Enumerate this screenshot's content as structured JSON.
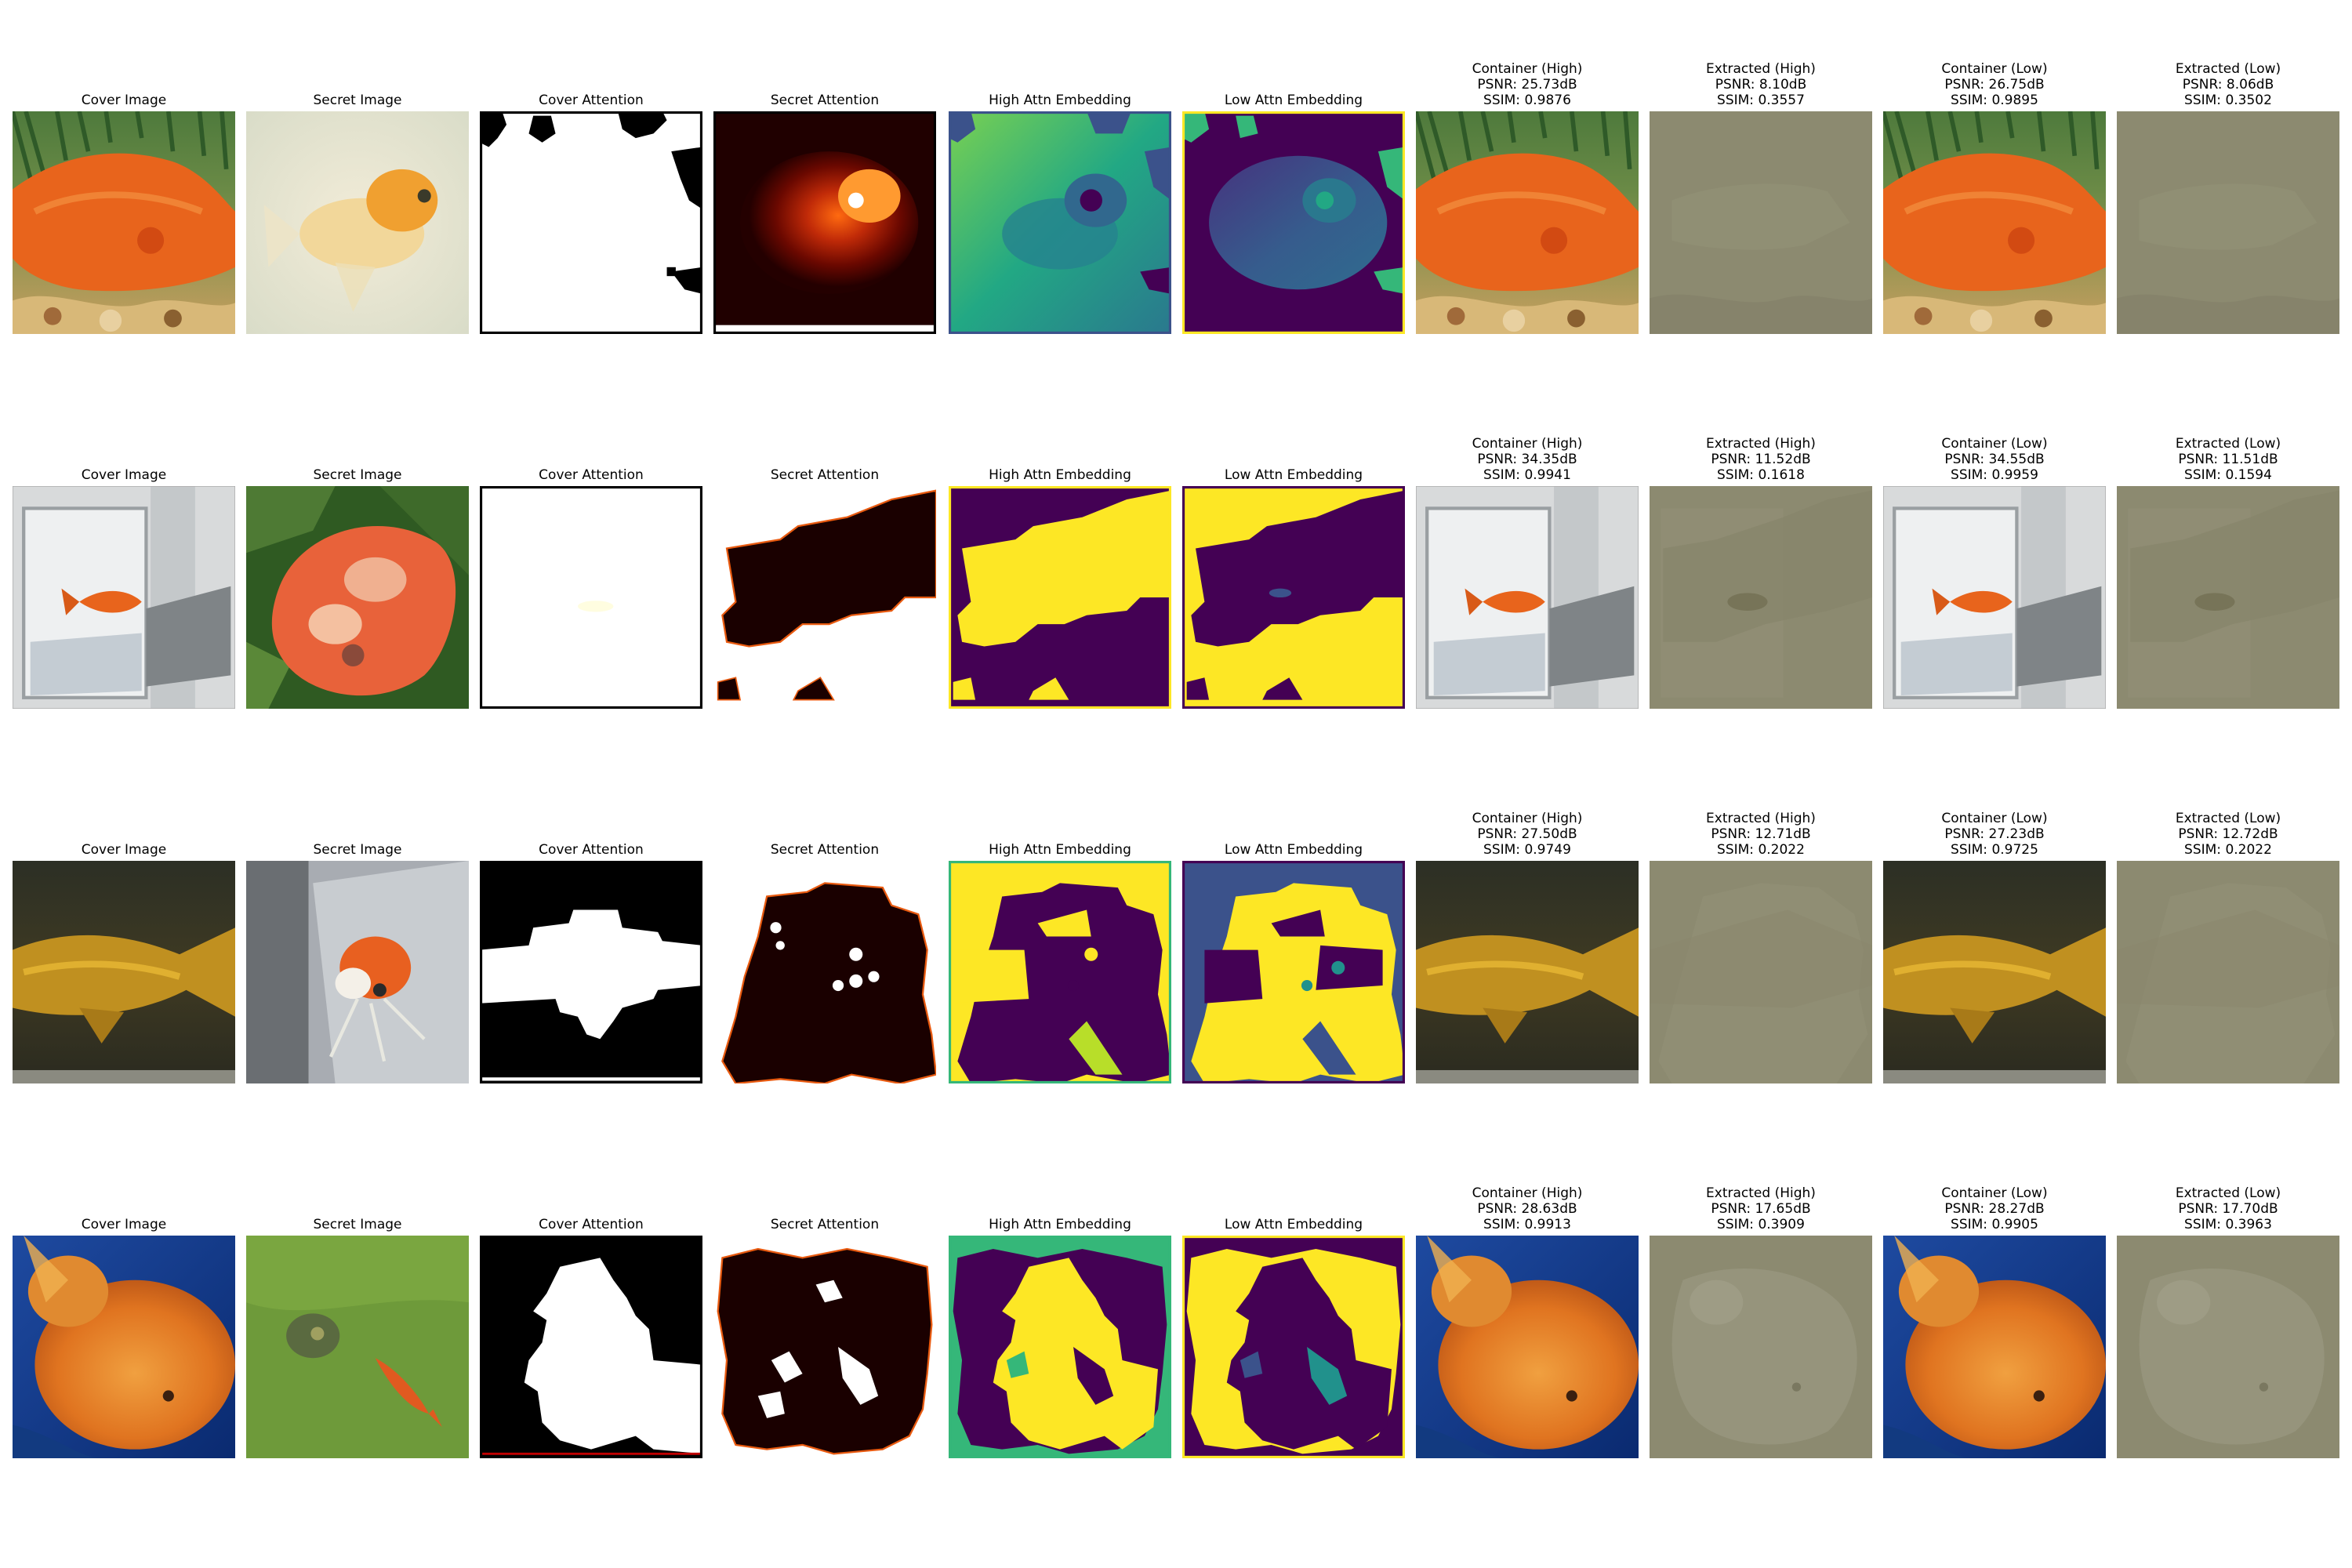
{
  "rows": [
    {
      "titles": [
        [
          "Cover Image"
        ],
        [
          "Secret Image"
        ],
        [
          "Cover Attention"
        ],
        [
          "Secret Attention"
        ],
        [
          "High Attn Embedding"
        ],
        [
          "Low Attn Embedding"
        ],
        [
          "Container (High)",
          "PSNR: 25.73dB",
          "SSIM: 0.9876"
        ],
        [
          "Extracted (High)",
          "PSNR: 8.10dB",
          "SSIM: 0.3557"
        ],
        [
          "Container (Low)",
          "PSNR: 26.75dB",
          "SSIM: 0.9895"
        ],
        [
          "Extracted (Low)",
          "PSNR: 8.06dB",
          "SSIM: 0.3502"
        ]
      ]
    },
    {
      "titles": [
        [
          "Cover Image"
        ],
        [
          "Secret Image"
        ],
        [
          "Cover Attention"
        ],
        [
          "Secret Attention"
        ],
        [
          "High Attn Embedding"
        ],
        [
          "Low Attn Embedding"
        ],
        [
          "Container (High)",
          "PSNR: 34.35dB",
          "SSIM: 0.9941"
        ],
        [
          "Extracted (High)",
          "PSNR: 11.52dB",
          "SSIM: 0.1618"
        ],
        [
          "Container (Low)",
          "PSNR: 34.55dB",
          "SSIM: 0.9959"
        ],
        [
          "Extracted (Low)",
          "PSNR: 11.51dB",
          "SSIM: 0.1594"
        ]
      ]
    },
    {
      "titles": [
        [
          "Cover Image"
        ],
        [
          "Secret Image"
        ],
        [
          "Cover Attention"
        ],
        [
          "Secret Attention"
        ],
        [
          "High Attn Embedding"
        ],
        [
          "Low Attn Embedding"
        ],
        [
          "Container (High)",
          "PSNR: 27.50dB",
          "SSIM: 0.9749"
        ],
        [
          "Extracted (High)",
          "PSNR: 12.71dB",
          "SSIM: 0.2022"
        ],
        [
          "Container (Low)",
          "PSNR: 27.23dB",
          "SSIM: 0.9725"
        ],
        [
          "Extracted (Low)",
          "PSNR: 12.72dB",
          "SSIM: 0.2022"
        ]
      ]
    },
    {
      "titles": [
        [
          "Cover Image"
        ],
        [
          "Secret Image"
        ],
        [
          "Cover Attention"
        ],
        [
          "Secret Attention"
        ],
        [
          "High Attn Embedding"
        ],
        [
          "Low Attn Embedding"
        ],
        [
          "Container (High)",
          "PSNR: 28.63dB",
          "SSIM: 0.9913"
        ],
        [
          "Extracted (High)",
          "PSNR: 17.65dB",
          "SSIM: 0.3909"
        ],
        [
          "Container (Low)",
          "PSNR: 28.27dB",
          "SSIM: 0.9905"
        ],
        [
          "Extracted (Low)",
          "PSNR: 17.70dB",
          "SSIM: 0.3963"
        ]
      ]
    }
  ],
  "colors": {
    "goldfish_orange": "#e8641c",
    "viridis_purple": "#440154",
    "viridis_yellow": "#fde725",
    "viridis_green": "#35b779",
    "viridis_teal": "#21918c",
    "viridis_blue": "#3b528b",
    "extracted_gray": "#8c8a70",
    "mask_black": "#000000",
    "mask_white": "#ffffff"
  }
}
